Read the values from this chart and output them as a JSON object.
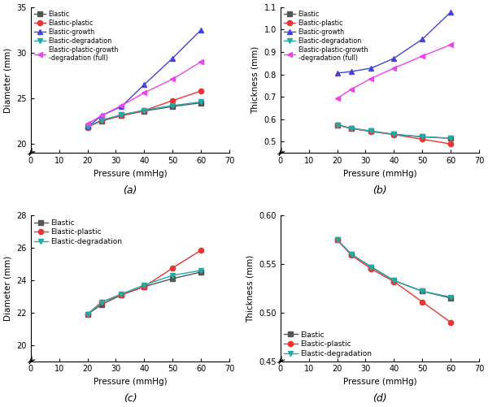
{
  "pressure": [
    20,
    25,
    32,
    40,
    50,
    60
  ],
  "a_elastic": [
    21.9,
    22.5,
    23.1,
    23.6,
    24.1,
    24.5
  ],
  "a_plastic": [
    21.8,
    22.6,
    23.1,
    23.65,
    24.75,
    25.8
  ],
  "a_growth": [
    21.85,
    23.1,
    24.1,
    26.5,
    29.4,
    32.5
  ],
  "a_degradation": [
    21.9,
    22.6,
    23.2,
    23.7,
    24.2,
    24.6
  ],
  "a_full": [
    22.2,
    23.1,
    24.2,
    25.6,
    27.1,
    29.0
  ],
  "b_elastic": [
    0.575,
    0.56,
    0.547,
    0.533,
    0.522,
    0.515
  ],
  "b_plastic": [
    0.575,
    0.559,
    0.545,
    0.532,
    0.511,
    0.49
  ],
  "b_growth": [
    0.806,
    0.813,
    0.828,
    0.872,
    0.957,
    1.078
  ],
  "b_degradation": [
    0.575,
    0.56,
    0.547,
    0.533,
    0.522,
    0.516
  ],
  "b_full": [
    0.693,
    0.734,
    0.782,
    0.828,
    0.882,
    0.932
  ],
  "c_elastic": [
    21.9,
    22.5,
    23.1,
    23.6,
    24.1,
    24.5
  ],
  "c_plastic": [
    21.9,
    22.65,
    23.1,
    23.6,
    24.75,
    25.85
  ],
  "c_degradation": [
    21.9,
    22.65,
    23.15,
    23.7,
    24.3,
    24.6
  ],
  "d_elastic": [
    0.575,
    0.56,
    0.547,
    0.533,
    0.522,
    0.515
  ],
  "d_plastic": [
    0.575,
    0.559,
    0.545,
    0.532,
    0.511,
    0.49
  ],
  "d_degradation": [
    0.575,
    0.56,
    0.547,
    0.533,
    0.522,
    0.516
  ],
  "color_elastic": "#555555",
  "color_plastic": "#ee3333",
  "color_growth": "#4444dd",
  "color_degradation": "#22aaaa",
  "color_full": "#ee44ee",
  "xlabel": "Pressure (mmHg)",
  "ylabel_a": "Diameter (mm)",
  "ylabel_b": "Thickness (mm)",
  "ylabel_c": "Diameter (mm)",
  "ylabel_d": "Thickness (mm)",
  "label_a": "(a)",
  "label_b": "(b)",
  "label_c": "(c)",
  "label_d": "(d)",
  "legend_elastic": "Elastic",
  "legend_plastic": "Elastic-plastic",
  "legend_growth": "Elastic-growth",
  "legend_degradation": "Elastic-degradation",
  "legend_full": "Elastic-plastic-growth\n-degradation (full)",
  "xlim": [
    0,
    70
  ],
  "xticks": [
    0,
    10,
    20,
    30,
    40,
    50,
    60,
    70
  ],
  "a_ylim": [
    19,
    35
  ],
  "a_yticks": [
    20,
    25,
    30,
    35
  ],
  "b_ylim": [
    0.45,
    1.1
  ],
  "b_yticks": [
    0.5,
    0.6,
    0.7,
    0.8,
    0.9,
    1.0,
    1.1
  ],
  "c_ylim": [
    19,
    28
  ],
  "c_yticks": [
    20,
    22,
    24,
    26,
    28
  ],
  "d_ylim": [
    0.45,
    0.6
  ],
  "d_yticks": [
    0.45,
    0.5,
    0.55,
    0.6
  ]
}
